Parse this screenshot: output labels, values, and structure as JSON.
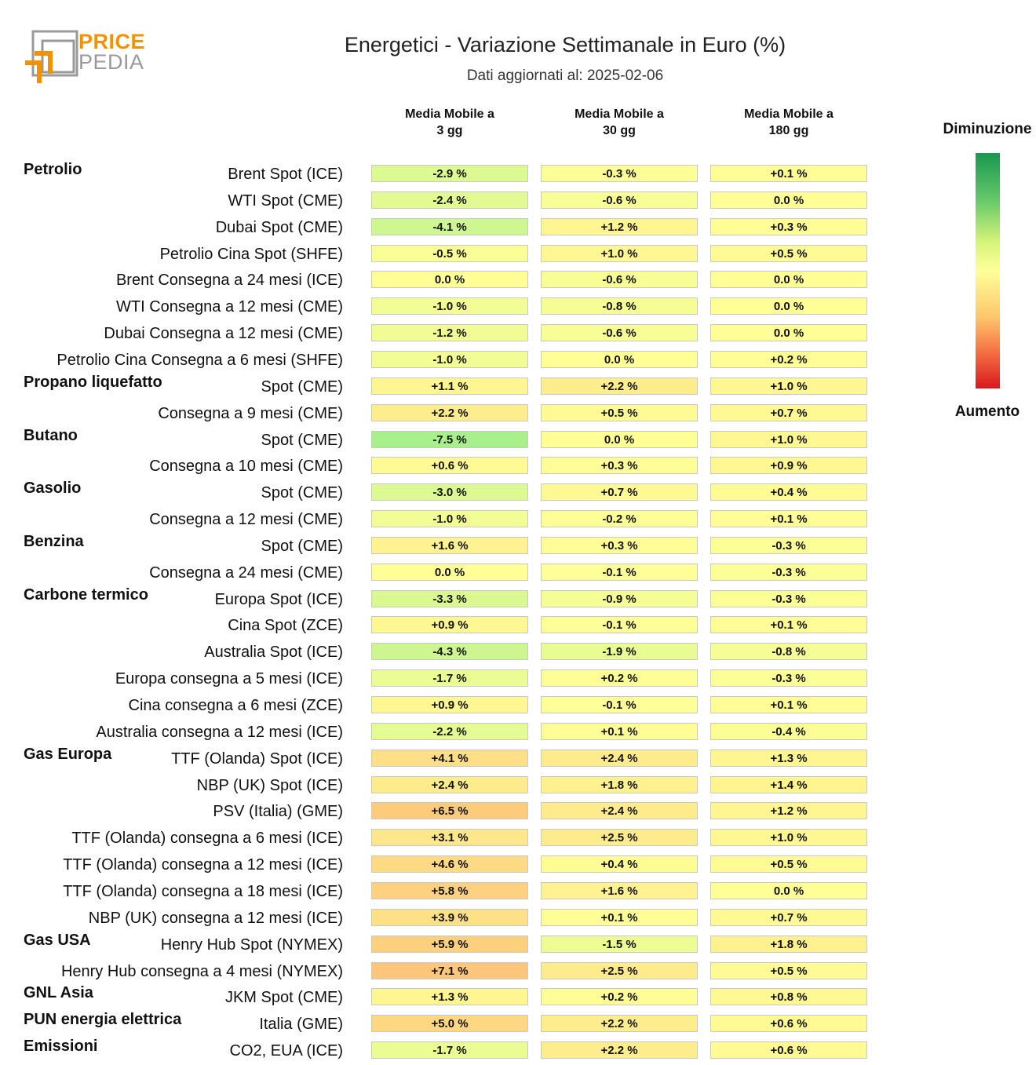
{
  "brand": {
    "line1": "PRICE",
    "line2": "PEDIA",
    "orange": "#f39200",
    "grey": "#9a9a9a"
  },
  "chart_data": {
    "type": "heatmap",
    "title": "Energetici - Variazione Settimanale in Euro (%)",
    "subtitle": "Dati aggiornati al: 2025-02-06",
    "columns": [
      "Media Mobile a\n3 gg",
      "Media Mobile a\n30 gg",
      "Media Mobile a\n180 gg"
    ],
    "legend": {
      "top": "Diminuzione",
      "bottom": "Aumento",
      "colors": [
        "#1a9850",
        "#ffff99",
        "#d7191c"
      ]
    },
    "rows": [
      {
        "group": "Petrolio",
        "label": "Brent Spot (ICE)",
        "values": [
          -2.9,
          -0.3,
          0.1
        ]
      },
      {
        "group": "",
        "label": "WTI Spot (CME)",
        "values": [
          -2.4,
          -0.6,
          0.0
        ]
      },
      {
        "group": "",
        "label": "Dubai Spot (CME)",
        "values": [
          -4.1,
          1.2,
          0.3
        ]
      },
      {
        "group": "",
        "label": "Petrolio Cina Spot (SHFE)",
        "values": [
          -0.5,
          1.0,
          0.5
        ]
      },
      {
        "group": "",
        "label": "Brent Consegna a 24 mesi (ICE)",
        "values": [
          0.0,
          -0.6,
          0.0
        ]
      },
      {
        "group": "",
        "label": "WTI Consegna a 12 mesi (CME)",
        "values": [
          -1.0,
          -0.8,
          0.0
        ]
      },
      {
        "group": "",
        "label": "Dubai Consegna a 12 mesi (CME)",
        "values": [
          -1.2,
          -0.6,
          0.0
        ]
      },
      {
        "group": "",
        "label": "Petrolio Cina Consegna a 6 mesi (SHFE)",
        "values": [
          -1.0,
          0.0,
          0.2
        ]
      },
      {
        "group": "Propano liquefatto",
        "label": "Spot (CME)",
        "values": [
          1.1,
          2.2,
          1.0
        ]
      },
      {
        "group": "",
        "label": "Consegna a 9 mesi (CME)",
        "values": [
          2.2,
          0.5,
          0.7
        ]
      },
      {
        "group": "Butano",
        "label": "Spot (CME)",
        "values": [
          -7.5,
          0.0,
          1.0
        ]
      },
      {
        "group": "",
        "label": "Consegna a 10 mesi (CME)",
        "values": [
          0.6,
          0.3,
          0.9
        ]
      },
      {
        "group": "Gasolio",
        "label": "Spot (CME)",
        "values": [
          -3.0,
          0.7,
          0.4
        ]
      },
      {
        "group": "",
        "label": "Consegna a 12 mesi (CME)",
        "values": [
          -1.0,
          -0.2,
          0.1
        ]
      },
      {
        "group": "Benzina",
        "label": "Spot (CME)",
        "values": [
          1.6,
          0.3,
          -0.3
        ]
      },
      {
        "group": "",
        "label": "Consegna a 24 mesi (CME)",
        "values": [
          0.0,
          -0.1,
          -0.3
        ]
      },
      {
        "group": "Carbone termico",
        "label": "Europa Spot (ICE)",
        "values": [
          -3.3,
          -0.9,
          -0.3
        ]
      },
      {
        "group": "",
        "label": "Cina Spot (ZCE)",
        "values": [
          0.9,
          -0.1,
          0.1
        ]
      },
      {
        "group": "",
        "label": "Australia Spot (ICE)",
        "values": [
          -4.3,
          -1.9,
          -0.8
        ]
      },
      {
        "group": "",
        "label": "Europa consegna a 5 mesi (ICE)",
        "values": [
          -1.7,
          0.2,
          -0.3
        ]
      },
      {
        "group": "",
        "label": "Cina consegna a 6 mesi (ZCE)",
        "values": [
          0.9,
          -0.1,
          0.1
        ]
      },
      {
        "group": "",
        "label": "Australia consegna a 12 mesi (ICE)",
        "values": [
          -2.2,
          0.1,
          -0.4
        ]
      },
      {
        "group": "Gas Europa",
        "label": "TTF (Olanda) Spot (ICE)",
        "values": [
          4.1,
          2.4,
          1.3
        ]
      },
      {
        "group": "",
        "label": "NBP (UK) Spot (ICE)",
        "values": [
          2.4,
          1.8,
          1.4
        ]
      },
      {
        "group": "",
        "label": "PSV (Italia) (GME)",
        "values": [
          6.5,
          2.4,
          1.2
        ]
      },
      {
        "group": "",
        "label": "TTF (Olanda) consegna a 6 mesi (ICE)",
        "values": [
          3.1,
          2.5,
          1.0
        ]
      },
      {
        "group": "",
        "label": "TTF (Olanda) consegna a 12 mesi (ICE)",
        "values": [
          4.6,
          0.4,
          0.5
        ]
      },
      {
        "group": "",
        "label": "TTF (Olanda) consegna a 18 mesi (ICE)",
        "values": [
          5.8,
          1.6,
          0.0
        ]
      },
      {
        "group": "",
        "label": "NBP (UK) consegna a 12 mesi (ICE)",
        "values": [
          3.9,
          0.1,
          0.7
        ]
      },
      {
        "group": "Gas USA",
        "label": "Henry Hub Spot (NYMEX)",
        "values": [
          5.9,
          -1.5,
          1.8
        ]
      },
      {
        "group": "",
        "label": "Henry Hub consegna a 4 mesi (NYMEX)",
        "values": [
          7.1,
          2.5,
          0.5
        ]
      },
      {
        "group": "GNL Asia",
        "label": "JKM Spot (CME)",
        "values": [
          1.3,
          0.2,
          0.8
        ]
      },
      {
        "group": "PUN energia elettrica",
        "label": "Italia (GME)",
        "values": [
          5.0,
          2.2,
          0.6
        ]
      },
      {
        "group": "Emissioni",
        "label": "CO2, EUA (ICE)",
        "values": [
          -1.7,
          2.2,
          0.6
        ]
      }
    ]
  }
}
